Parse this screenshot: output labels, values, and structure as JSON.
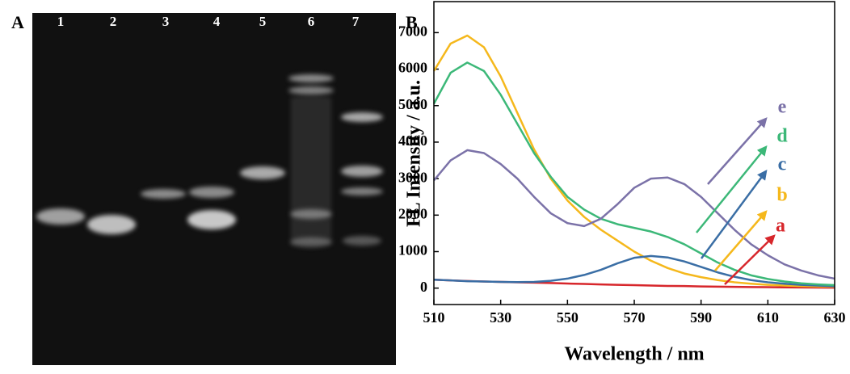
{
  "panel_a": {
    "label": "A",
    "lanes": [
      "1",
      "2",
      "3",
      "4",
      "5",
      "6",
      "7"
    ]
  },
  "chart_data": {
    "type": "line",
    "panel_label": "B",
    "x_label": "Wavelength / nm",
    "y_label": "FL Intensity / a.u.",
    "xlim": [
      510,
      630
    ],
    "xticks": [
      510,
      530,
      550,
      570,
      590,
      610,
      630
    ],
    "ylim": [
      -450,
      7850
    ],
    "yticks": [
      0,
      1000,
      2000,
      3000,
      4000,
      5000,
      6000,
      7000
    ],
    "x": [
      510,
      515,
      520,
      525,
      530,
      535,
      540,
      545,
      550,
      555,
      560,
      565,
      570,
      575,
      580,
      585,
      590,
      595,
      600,
      605,
      610,
      615,
      620,
      625,
      630
    ],
    "series": [
      {
        "name": "a",
        "color": "#d7262b",
        "values": [
          230,
          210,
          195,
          180,
          170,
          160,
          150,
          140,
          125,
          115,
          100,
          90,
          80,
          70,
          60,
          55,
          45,
          40,
          35,
          30,
          25,
          20,
          18,
          15,
          12
        ]
      },
      {
        "name": "b",
        "color": "#f5b81c",
        "values": [
          5950,
          6700,
          6920,
          6600,
          5800,
          4800,
          3800,
          3000,
          2400,
          1950,
          1600,
          1300,
          1000,
          750,
          550,
          400,
          300,
          220,
          160,
          120,
          90,
          70,
          55,
          45,
          40
        ]
      },
      {
        "name": "c",
        "color": "#3a6ea5",
        "values": [
          230,
          210,
          190,
          180,
          170,
          165,
          170,
          200,
          260,
          360,
          500,
          680,
          830,
          880,
          840,
          730,
          580,
          430,
          310,
          220,
          160,
          120,
          90,
          70,
          50
        ]
      },
      {
        "name": "d",
        "color": "#3cb878",
        "values": [
          5050,
          5900,
          6180,
          5950,
          5300,
          4500,
          3700,
          3050,
          2500,
          2150,
          1900,
          1750,
          1650,
          1550,
          1400,
          1200,
          950,
          700,
          500,
          350,
          250,
          180,
          130,
          100,
          80
        ]
      },
      {
        "name": "e",
        "color": "#7b72a8",
        "values": [
          2950,
          3500,
          3780,
          3700,
          3400,
          3000,
          2500,
          2050,
          1780,
          1700,
          1900,
          2300,
          2750,
          3000,
          3030,
          2850,
          2500,
          2050,
          1600,
          1200,
          900,
          650,
          480,
          350,
          260
        ]
      }
    ]
  }
}
